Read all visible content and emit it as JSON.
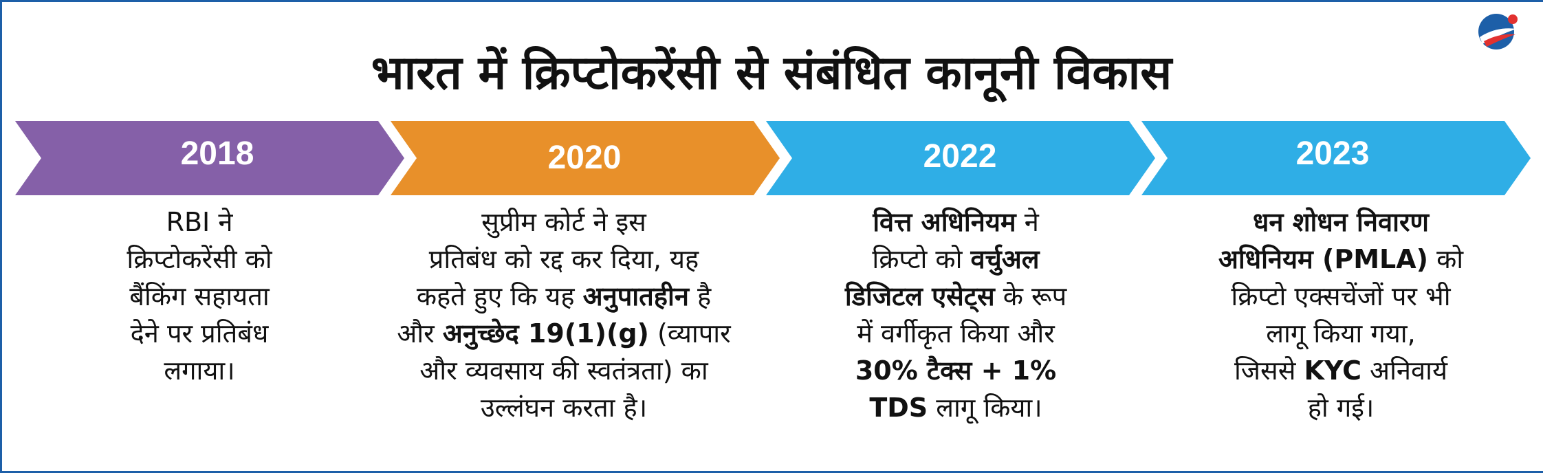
{
  "title": "भारत में क्रिप्टोकरेंसी से संबंधित कानूनी विकास",
  "colors": {
    "purple": "#8560a8",
    "orange": "#e8902a",
    "blue": "#2faee6",
    "frame": "#1d5fa8",
    "logo_red": "#e2312f"
  },
  "timeline": [
    {
      "year": "2018",
      "lines": [
        [
          {
            "t": "RBI ने"
          }
        ],
        [
          {
            "t": "क्रिप्टोकरेंसी को"
          }
        ],
        [
          {
            "t": "बैंकिंग सहायता"
          }
        ],
        [
          {
            "t": "देने पर प्रतिबंध"
          }
        ],
        [
          {
            "t": "लगाया।"
          }
        ]
      ]
    },
    {
      "year": "2020",
      "lines": [
        [
          {
            "t": "सुप्रीम कोर्ट ने इस"
          }
        ],
        [
          {
            "t": "प्रतिबंध को रद्द कर दिया, यह"
          }
        ],
        [
          {
            "t": "कहते हुए कि यह "
          },
          {
            "t": "अनुपातहीन",
            "b": true
          },
          {
            "t": " है"
          }
        ],
        [
          {
            "t": "और "
          },
          {
            "t": "अनुच्छेद 19(1)(g)",
            "b": true
          },
          {
            "t": "  (व्यापार"
          }
        ],
        [
          {
            "t": "और व्यवसाय की स्वतंत्रता) का"
          }
        ],
        [
          {
            "t": "उल्लंघन करता है।"
          }
        ]
      ]
    },
    {
      "year": "2022",
      "lines": [
        [
          {
            "t": "वित्त अधिनियम",
            "b": true
          },
          {
            "t": " ने"
          }
        ],
        [
          {
            "t": "क्रिप्टो को "
          },
          {
            "t": "वर्चुअल",
            "b": true
          }
        ],
        [
          {
            "t": "डिजिटल एसेट्स",
            "b": true
          },
          {
            "t": " के रूप"
          }
        ],
        [
          {
            "t": "में वर्गीकृत किया और"
          }
        ],
        [
          {
            "t": "30% टैक्स + 1%",
            "b": true
          }
        ],
        [
          {
            "t": "TDS",
            "b": true
          },
          {
            "t": " लागू किया।"
          }
        ]
      ]
    },
    {
      "year": "2023",
      "lines": [
        [
          {
            "t": "धन शोधन निवारण",
            "b": true
          }
        ],
        [
          {
            "t": "अधिनियम (PMLA)",
            "b": true
          },
          {
            "t": " को"
          }
        ],
        [
          {
            "t": "क्रिप्टो एक्सचेंजों पर भी"
          }
        ],
        [
          {
            "t": "लागू किया गया,"
          }
        ],
        [
          {
            "t": "जिससे "
          },
          {
            "t": "KYC",
            "b": true
          },
          {
            "t": " अनिवार्य"
          }
        ],
        [
          {
            "t": "हो गई।"
          }
        ]
      ]
    }
  ]
}
